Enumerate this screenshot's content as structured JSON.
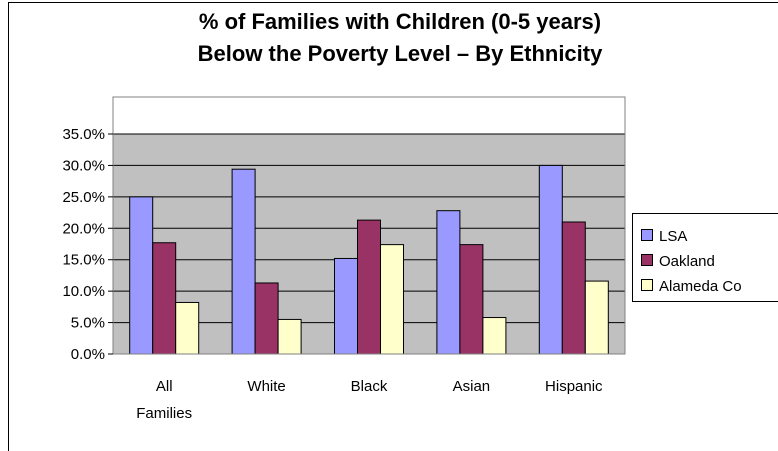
{
  "chart_data": {
    "type": "bar",
    "title": [
      "% of Families with Children (0-5 years)",
      "Below the Poverty Level – By Ethnicity"
    ],
    "xlabel": "",
    "ylabel": "",
    "categories": [
      [
        "All",
        "Families"
      ],
      [
        "White"
      ],
      [
        "Black"
      ],
      [
        "Asian"
      ],
      [
        "Hispanic"
      ]
    ],
    "series": [
      {
        "name": "LSA",
        "color": "#9999FF",
        "values": [
          25.0,
          29.4,
          15.2,
          22.8,
          30.0
        ]
      },
      {
        "name": "Oakland",
        "color": "#993366",
        "values": [
          17.7,
          11.3,
          21.3,
          17.4,
          21.0
        ]
      },
      {
        "name": "Alameda Co",
        "color": "#FFFFCC",
        "values": [
          8.2,
          5.5,
          17.4,
          5.8,
          11.6
        ]
      }
    ],
    "ylim": [
      0,
      35
    ],
    "yticks": [
      "0.0%",
      "5.0%",
      "10.0%",
      "15.0%",
      "20.0%",
      "25.0%",
      "30.0%",
      "35.0%"
    ],
    "grid": true,
    "legend_position": "right",
    "plot_background": "#C0C0C0"
  }
}
